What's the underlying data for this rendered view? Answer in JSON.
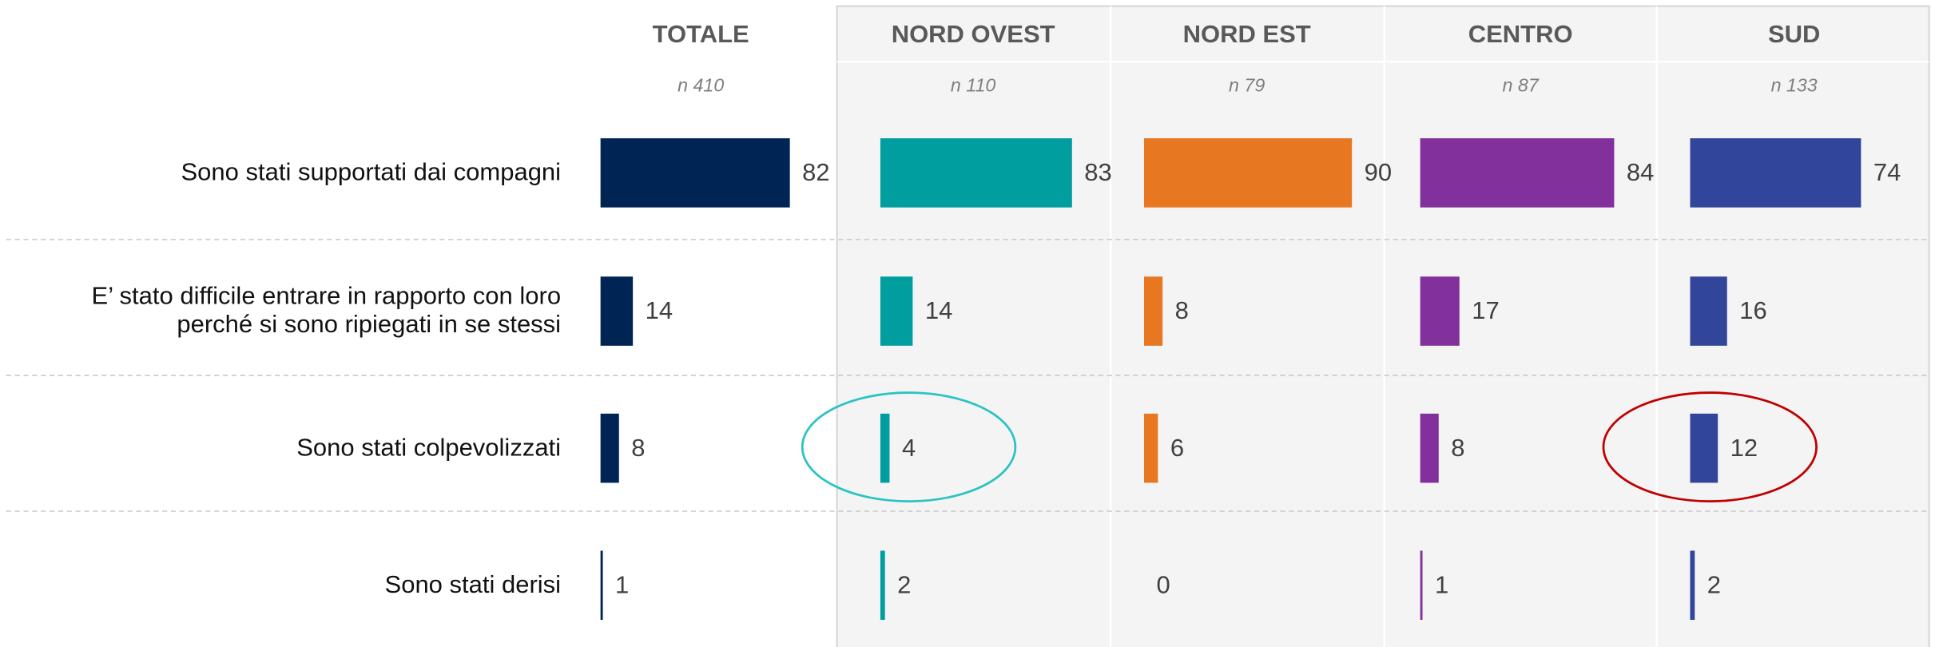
{
  "chart_data": {
    "type": "bar",
    "categories": [
      "Sono stati supportati dai compagni",
      "E’ stato difficile entrare in rapporto con loro perché si sono ripiegati in se stessi",
      "Sono stati colpevolizzati",
      "Sono stati derisi"
    ],
    "series": [
      {
        "name": "TOTALE",
        "sample": "n 410",
        "color": "#002554",
        "values": [
          82,
          14,
          8,
          1
        ]
      },
      {
        "name": "NORD OVEST",
        "sample": "n 110",
        "color": "#009e9e",
        "values": [
          83,
          14,
          4,
          2
        ]
      },
      {
        "name": "NORD EST",
        "sample": "n 79",
        "color": "#e87722",
        "values": [
          90,
          8,
          6,
          0
        ]
      },
      {
        "name": "CENTRO",
        "sample": "n 87",
        "color": "#82309b",
        "values": [
          84,
          17,
          8,
          1
        ]
      },
      {
        "name": "SUD",
        "sample": "n 133",
        "color": "#31459b",
        "values": [
          74,
          16,
          12,
          2
        ]
      }
    ]
  }
}
